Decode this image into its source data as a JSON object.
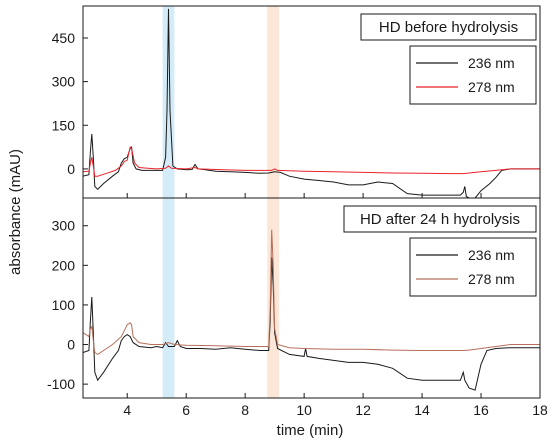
{
  "chart_data": {
    "type": "line",
    "xlabel": "time (min)",
    "ylabel": "absorbance (mAU)",
    "xlim": [
      2.5,
      18
    ],
    "x_ticks": [
      4,
      6,
      8,
      10,
      12,
      14,
      16,
      18
    ],
    "highlight_bands": [
      {
        "x_start": 5.2,
        "x_end": 5.6,
        "color": "#cfeaf7"
      },
      {
        "x_start": 8.75,
        "x_end": 9.15,
        "color": "#fbe3d4"
      }
    ],
    "panels": [
      {
        "title": "HD before hydrolysis",
        "ylim": [
          -100,
          560
        ],
        "y_ticks": [
          0,
          150,
          300,
          450
        ],
        "legend_position": "top-right",
        "series": [
          {
            "name": "236 nm",
            "color": "#1a1a1a",
            "points": [
              [
                2.5,
                -25
              ],
              [
                2.7,
                -20
              ],
              [
                2.75,
                60
              ],
              [
                2.8,
                120
              ],
              [
                2.85,
                40
              ],
              [
                2.9,
                -60
              ],
              [
                3.0,
                -70
              ],
              [
                3.2,
                -50
              ],
              [
                3.5,
                -25
              ],
              [
                3.7,
                -10
              ],
              [
                3.8,
                20
              ],
              [
                3.9,
                35
              ],
              [
                4.0,
                40
              ],
              [
                4.1,
                70
              ],
              [
                4.15,
                75
              ],
              [
                4.2,
                20
              ],
              [
                4.3,
                0
              ],
              [
                4.5,
                -5
              ],
              [
                4.8,
                -5
              ],
              [
                5.0,
                -5
              ],
              [
                5.2,
                -5
              ],
              [
                5.3,
                40
              ],
              [
                5.35,
                200
              ],
              [
                5.4,
                550
              ],
              [
                5.45,
                200
              ],
              [
                5.55,
                10
              ],
              [
                5.7,
                0
              ],
              [
                6.0,
                -3
              ],
              [
                6.2,
                -2
              ],
              [
                6.3,
                15
              ],
              [
                6.4,
                0
              ],
              [
                6.6,
                -2
              ],
              [
                6.8,
                -5
              ],
              [
                7.0,
                -8
              ],
              [
                7.5,
                -10
              ],
              [
                8.0,
                -12
              ],
              [
                8.5,
                -15
              ],
              [
                8.8,
                -14
              ],
              [
                9.0,
                -10
              ],
              [
                9.2,
                -12
              ],
              [
                9.5,
                -25
              ],
              [
                10.0,
                -35
              ],
              [
                10.5,
                -40
              ],
              [
                11.0,
                -45
              ],
              [
                11.5,
                -55
              ],
              [
                12.0,
                -55
              ],
              [
                12.5,
                -45
              ],
              [
                13.0,
                -50
              ],
              [
                13.5,
                -85
              ],
              [
                14.0,
                -90
              ],
              [
                14.5,
                -90
              ],
              [
                15.0,
                -90
              ],
              [
                15.3,
                -90
              ],
              [
                15.4,
                -80
              ],
              [
                15.45,
                -60
              ],
              [
                15.5,
                -95
              ],
              [
                15.7,
                -105
              ],
              [
                15.8,
                -100
              ],
              [
                16.0,
                -75
              ],
              [
                16.3,
                -50
              ],
              [
                16.5,
                -30
              ],
              [
                16.7,
                -5
              ],
              [
                17.0,
                0
              ],
              [
                18.0,
                0
              ]
            ]
          },
          {
            "name": "278 nm",
            "color": "#e8232a",
            "points": [
              [
                2.5,
                -10
              ],
              [
                2.7,
                -8
              ],
              [
                2.75,
                20
              ],
              [
                2.8,
                40
              ],
              [
                2.85,
                10
              ],
              [
                2.9,
                -25
              ],
              [
                3.0,
                -25
              ],
              [
                3.3,
                -15
              ],
              [
                3.6,
                -5
              ],
              [
                3.8,
                10
              ],
              [
                3.9,
                25
              ],
              [
                4.0,
                30
              ],
              [
                4.1,
                75
              ],
              [
                4.15,
                70
              ],
              [
                4.25,
                20
              ],
              [
                4.4,
                5
              ],
              [
                4.7,
                2
              ],
              [
                5.0,
                0
              ],
              [
                5.3,
                2
              ],
              [
                5.4,
                10
              ],
              [
                5.5,
                2
              ],
              [
                6.0,
                0
              ],
              [
                6.3,
                5
              ],
              [
                6.4,
                0
              ],
              [
                7.0,
                -2
              ],
              [
                8.0,
                -5
              ],
              [
                8.9,
                -5
              ],
              [
                9.0,
                0
              ],
              [
                9.1,
                -5
              ],
              [
                10.0,
                -8
              ],
              [
                11.0,
                -10
              ],
              [
                12.0,
                -12
              ],
              [
                13.0,
                -14
              ],
              [
                14.0,
                -15
              ],
              [
                15.0,
                -16
              ],
              [
                15.4,
                -16
              ],
              [
                15.6,
                -14
              ],
              [
                16.0,
                -10
              ],
              [
                16.5,
                -5
              ],
              [
                17.0,
                0
              ],
              [
                18.0,
                0
              ]
            ]
          }
        ]
      },
      {
        "title": "HD after 24 h hydrolysis",
        "ylim": [
          -135,
          370
        ],
        "y_ticks": [
          -100,
          0,
          100,
          200,
          300
        ],
        "legend_position": "top-right",
        "series": [
          {
            "name": "236 nm",
            "color": "#1a1a1a",
            "points": [
              [
                2.5,
                -20
              ],
              [
                2.7,
                -15
              ],
              [
                2.75,
                60
              ],
              [
                2.8,
                120
              ],
              [
                2.85,
                30
              ],
              [
                2.9,
                -70
              ],
              [
                3.0,
                -90
              ],
              [
                3.2,
                -70
              ],
              [
                3.5,
                -35
              ],
              [
                3.7,
                -15
              ],
              [
                3.8,
                10
              ],
              [
                3.9,
                20
              ],
              [
                4.0,
                25
              ],
              [
                4.1,
                20
              ],
              [
                4.2,
                5
              ],
              [
                4.4,
                -5
              ],
              [
                4.8,
                -8
              ],
              [
                5.0,
                -5
              ],
              [
                5.2,
                -8
              ],
              [
                5.3,
                5
              ],
              [
                5.4,
                -5
              ],
              [
                5.6,
                -5
              ],
              [
                5.7,
                10
              ],
              [
                5.8,
                -5
              ],
              [
                6.0,
                -10
              ],
              [
                6.5,
                -10
              ],
              [
                7.0,
                -12
              ],
              [
                7.5,
                -8
              ],
              [
                8.0,
                -12
              ],
              [
                8.5,
                -15
              ],
              [
                8.8,
                -15
              ],
              [
                8.85,
                60
              ],
              [
                8.9,
                220
              ],
              [
                8.95,
                150
              ],
              [
                9.0,
                30
              ],
              [
                9.1,
                -10
              ],
              [
                9.5,
                -25
              ],
              [
                10.0,
                -30
              ],
              [
                10.05,
                -10
              ],
              [
                10.1,
                -30
              ],
              [
                10.5,
                -35
              ],
              [
                11.0,
                -40
              ],
              [
                11.5,
                -45
              ],
              [
                12.0,
                -45
              ],
              [
                12.5,
                -50
              ],
              [
                13.0,
                -60
              ],
              [
                13.5,
                -85
              ],
              [
                14.0,
                -90
              ],
              [
                14.5,
                -90
              ],
              [
                15.0,
                -90
              ],
              [
                15.3,
                -90
              ],
              [
                15.4,
                -70
              ],
              [
                15.45,
                -90
              ],
              [
                15.6,
                -110
              ],
              [
                15.8,
                -115
              ],
              [
                16.0,
                -50
              ],
              [
                16.2,
                -15
              ],
              [
                16.5,
                -10
              ],
              [
                17.0,
                -8
              ],
              [
                18.0,
                -8
              ]
            ]
          },
          {
            "name": "278 nm",
            "color": "#b5705a",
            "points": [
              [
                2.5,
                30
              ],
              [
                2.7,
                20
              ],
              [
                2.75,
                40
              ],
              [
                2.8,
                45
              ],
              [
                2.85,
                10
              ],
              [
                2.9,
                -20
              ],
              [
                3.0,
                -25
              ],
              [
                3.2,
                -15
              ],
              [
                3.5,
                0
              ],
              [
                3.8,
                20
              ],
              [
                3.9,
                35
              ],
              [
                4.0,
                50
              ],
              [
                4.1,
                55
              ],
              [
                4.15,
                50
              ],
              [
                4.2,
                20
              ],
              [
                4.4,
                5
              ],
              [
                4.8,
                0
              ],
              [
                5.2,
                0
              ],
              [
                5.4,
                5
              ],
              [
                5.6,
                0
              ],
              [
                6.0,
                -2
              ],
              [
                7.0,
                -3
              ],
              [
                8.0,
                -5
              ],
              [
                8.8,
                -5
              ],
              [
                8.85,
                90
              ],
              [
                8.9,
                290
              ],
              [
                8.95,
                200
              ],
              [
                9.0,
                40
              ],
              [
                9.1,
                0
              ],
              [
                9.5,
                -8
              ],
              [
                10.0,
                -10
              ],
              [
                11.0,
                -12
              ],
              [
                12.0,
                -12
              ],
              [
                13.0,
                -14
              ],
              [
                14.0,
                -15
              ],
              [
                15.0,
                -15
              ],
              [
                15.4,
                -15
              ],
              [
                15.6,
                -14
              ],
              [
                16.0,
                -10
              ],
              [
                16.5,
                -5
              ],
              [
                17.0,
                0
              ],
              [
                18.0,
                0
              ]
            ]
          }
        ]
      }
    ]
  }
}
